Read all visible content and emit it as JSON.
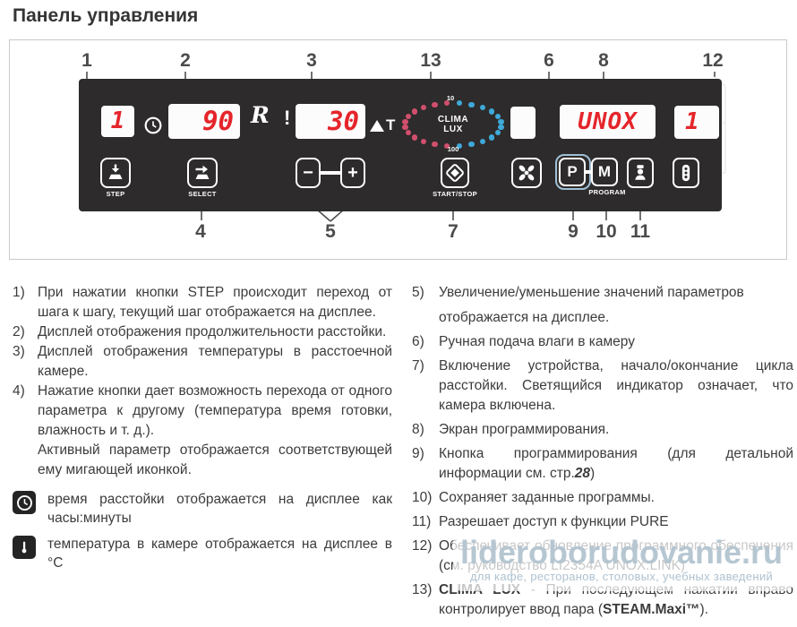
{
  "title": "Панель управления",
  "panel": {
    "callouts_top": [
      "1",
      "2",
      "3",
      "13",
      "6",
      "8",
      "12"
    ],
    "callouts_bottom": [
      "4",
      "5",
      "7",
      "9",
      "10",
      "11"
    ],
    "displays": {
      "step": "1",
      "time": "90",
      "temp": "30",
      "program": "UNOX",
      "prog_step": "1"
    },
    "delta_t": "T",
    "therm_mark": "!",
    "steam_mark": "R",
    "clima": {
      "line1": "CLIMA",
      "line2": "LUX",
      "min": "10",
      "max": "100",
      "red": "#d14f6d",
      "blue": "#3fa9d9"
    },
    "buttons": {
      "step": "STEP",
      "select": "SELECT",
      "minus": "−",
      "plus": "+",
      "start_stop": "START/STOP",
      "p": "P",
      "m": "M",
      "program": "PROGRAM"
    }
  },
  "left_items": [
    {
      "num": "1)",
      "paras": [
        [
          "При нажатии кнопки STEP происходит переход от шага к шагу, текущий шаг отображается на дисплее."
        ]
      ]
    },
    {
      "num": "2)",
      "paras": [
        [
          "Дисплей отображения продолжительности расстойки."
        ]
      ]
    },
    {
      "num": "3)",
      "paras": [
        [
          "Дисплей отображения температуры в расстоечной камере."
        ]
      ]
    },
    {
      "num": "4)",
      "paras": [
        [
          "Нажатие кнопки дает возможность перехода от одного параметра к другому (температура время готовки, влажность и т. д.)."
        ],
        [
          "Активный параметр отображается соответствующей ему мигающей иконкой."
        ]
      ]
    }
  ],
  "icon_notes": [
    {
      "icon": "clock-icon",
      "text": "время расстойки отображается на дисплее как часы:минуты"
    },
    {
      "icon": "thermometer-icon",
      "text": "температура в камере отображается на дисплее в °C"
    }
  ],
  "right_items": [
    {
      "num": "5)",
      "paras": [
        [
          "Увеличение/уменьшение значений параметров"
        ],
        [
          "отображается на дисплее."
        ]
      ]
    },
    {
      "num": "6)",
      "paras": [
        [
          "Ручная подача влаги в камеру"
        ]
      ]
    },
    {
      "num": "7)",
      "paras": [
        [
          "Включение устройства, начало/окончание цикла расстойки. Светящийся индикатор означает, что камера включена."
        ]
      ]
    },
    {
      "num": "8)",
      "paras": [
        [
          "Экран программирования."
        ]
      ]
    },
    {
      "num": "9)",
      "paras": [
        [
          {
            "t": "Кнопка программирования (для детальной информации см. стр."
          },
          {
            "t": "28",
            "b": true,
            "i": true
          },
          {
            "t": ")"
          }
        ]
      ]
    },
    {
      "num": "10)",
      "paras": [
        [
          "Сохраняет заданные программы."
        ]
      ]
    },
    {
      "num": "11)",
      "paras": [
        [
          "Разрешает доступ к функции PURE"
        ]
      ]
    },
    {
      "num": "12)",
      "paras": [
        [
          "Обеспечивает обновление программного обеспечения (см. руководство LI2354A UNOX.LINK)"
        ]
      ]
    },
    {
      "num": "13)",
      "paras": [
        [
          {
            "t": "CLIMA LUX",
            "b": true
          },
          {
            "t": " - При последующем нажатии вправо контролирует ввод пара ("
          },
          {
            "t": "STEAM.Maxi™",
            "b": true
          },
          {
            "t": ")."
          }
        ]
      ]
    }
  ],
  "watermark": {
    "main": "lideroborudovanie.ru",
    "sub": "для кафе, ресторанов, столовых, учебных заведений"
  }
}
